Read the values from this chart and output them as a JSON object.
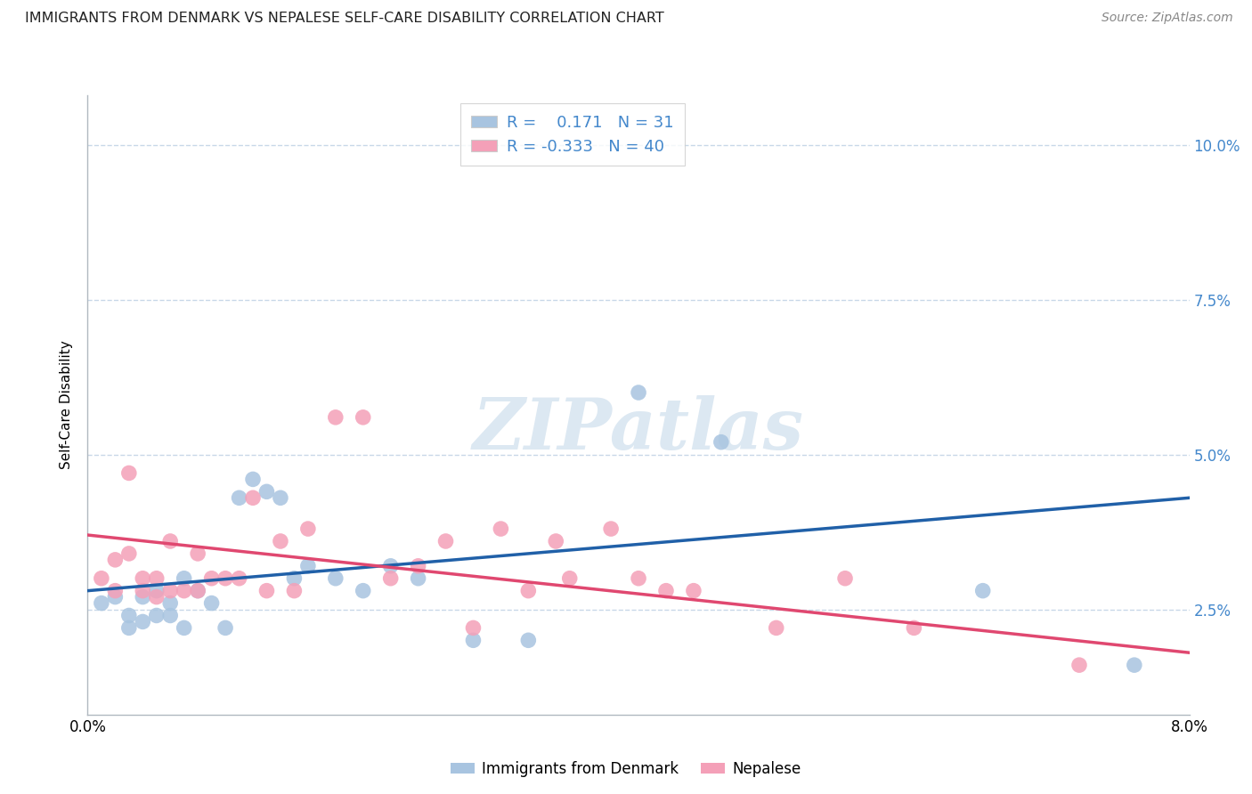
{
  "title": "IMMIGRANTS FROM DENMARK VS NEPALESE SELF-CARE DISABILITY CORRELATION CHART",
  "source": "Source: ZipAtlas.com",
  "ylabel": "Self-Care Disability",
  "xlim": [
    0.0,
    0.08
  ],
  "ylim": [
    0.008,
    0.108
  ],
  "ytick_vals": [
    0.025,
    0.05,
    0.075,
    0.1
  ],
  "ytick_labels": [
    "2.5%",
    "5.0%",
    "7.5%",
    "10.0%"
  ],
  "xtick_vals": [
    0.0,
    0.08
  ],
  "xtick_labels": [
    "0.0%",
    "8.0%"
  ],
  "blue_R": "0.171",
  "blue_N": "31",
  "pink_R": "-0.333",
  "pink_N": "40",
  "blue_scatter_color": "#a8c4e0",
  "pink_scatter_color": "#f4a0b8",
  "blue_line_color": "#2060a8",
  "pink_line_color": "#e04870",
  "text_color": "#4488cc",
  "grid_color": "#c8d8e8",
  "watermark": "ZIPatlas",
  "watermark_color": "#dce8f2",
  "legend_blue_label": "Immigrants from Denmark",
  "legend_pink_label": "Nepalese",
  "blue_x": [
    0.001,
    0.002,
    0.003,
    0.003,
    0.004,
    0.004,
    0.005,
    0.005,
    0.006,
    0.006,
    0.007,
    0.007,
    0.008,
    0.009,
    0.01,
    0.011,
    0.012,
    0.013,
    0.014,
    0.015,
    0.016,
    0.018,
    0.02,
    0.022,
    0.024,
    0.028,
    0.032,
    0.04,
    0.046,
    0.065,
    0.076
  ],
  "blue_y": [
    0.026,
    0.027,
    0.022,
    0.024,
    0.023,
    0.027,
    0.024,
    0.028,
    0.024,
    0.026,
    0.022,
    0.03,
    0.028,
    0.026,
    0.022,
    0.043,
    0.046,
    0.044,
    0.043,
    0.03,
    0.032,
    0.03,
    0.028,
    0.032,
    0.03,
    0.02,
    0.02,
    0.06,
    0.052,
    0.028,
    0.016
  ],
  "pink_x": [
    0.001,
    0.002,
    0.002,
    0.003,
    0.003,
    0.004,
    0.004,
    0.005,
    0.005,
    0.006,
    0.006,
    0.007,
    0.008,
    0.008,
    0.009,
    0.01,
    0.011,
    0.012,
    0.013,
    0.014,
    0.015,
    0.016,
    0.018,
    0.02,
    0.022,
    0.024,
    0.026,
    0.028,
    0.03,
    0.032,
    0.034,
    0.035,
    0.038,
    0.04,
    0.042,
    0.044,
    0.05,
    0.055,
    0.06,
    0.072
  ],
  "pink_y": [
    0.03,
    0.028,
    0.033,
    0.047,
    0.034,
    0.028,
    0.03,
    0.027,
    0.03,
    0.028,
    0.036,
    0.028,
    0.028,
    0.034,
    0.03,
    0.03,
    0.03,
    0.043,
    0.028,
    0.036,
    0.028,
    0.038,
    0.056,
    0.056,
    0.03,
    0.032,
    0.036,
    0.022,
    0.038,
    0.028,
    0.036,
    0.03,
    0.038,
    0.03,
    0.028,
    0.028,
    0.022,
    0.03,
    0.022,
    0.016
  ]
}
